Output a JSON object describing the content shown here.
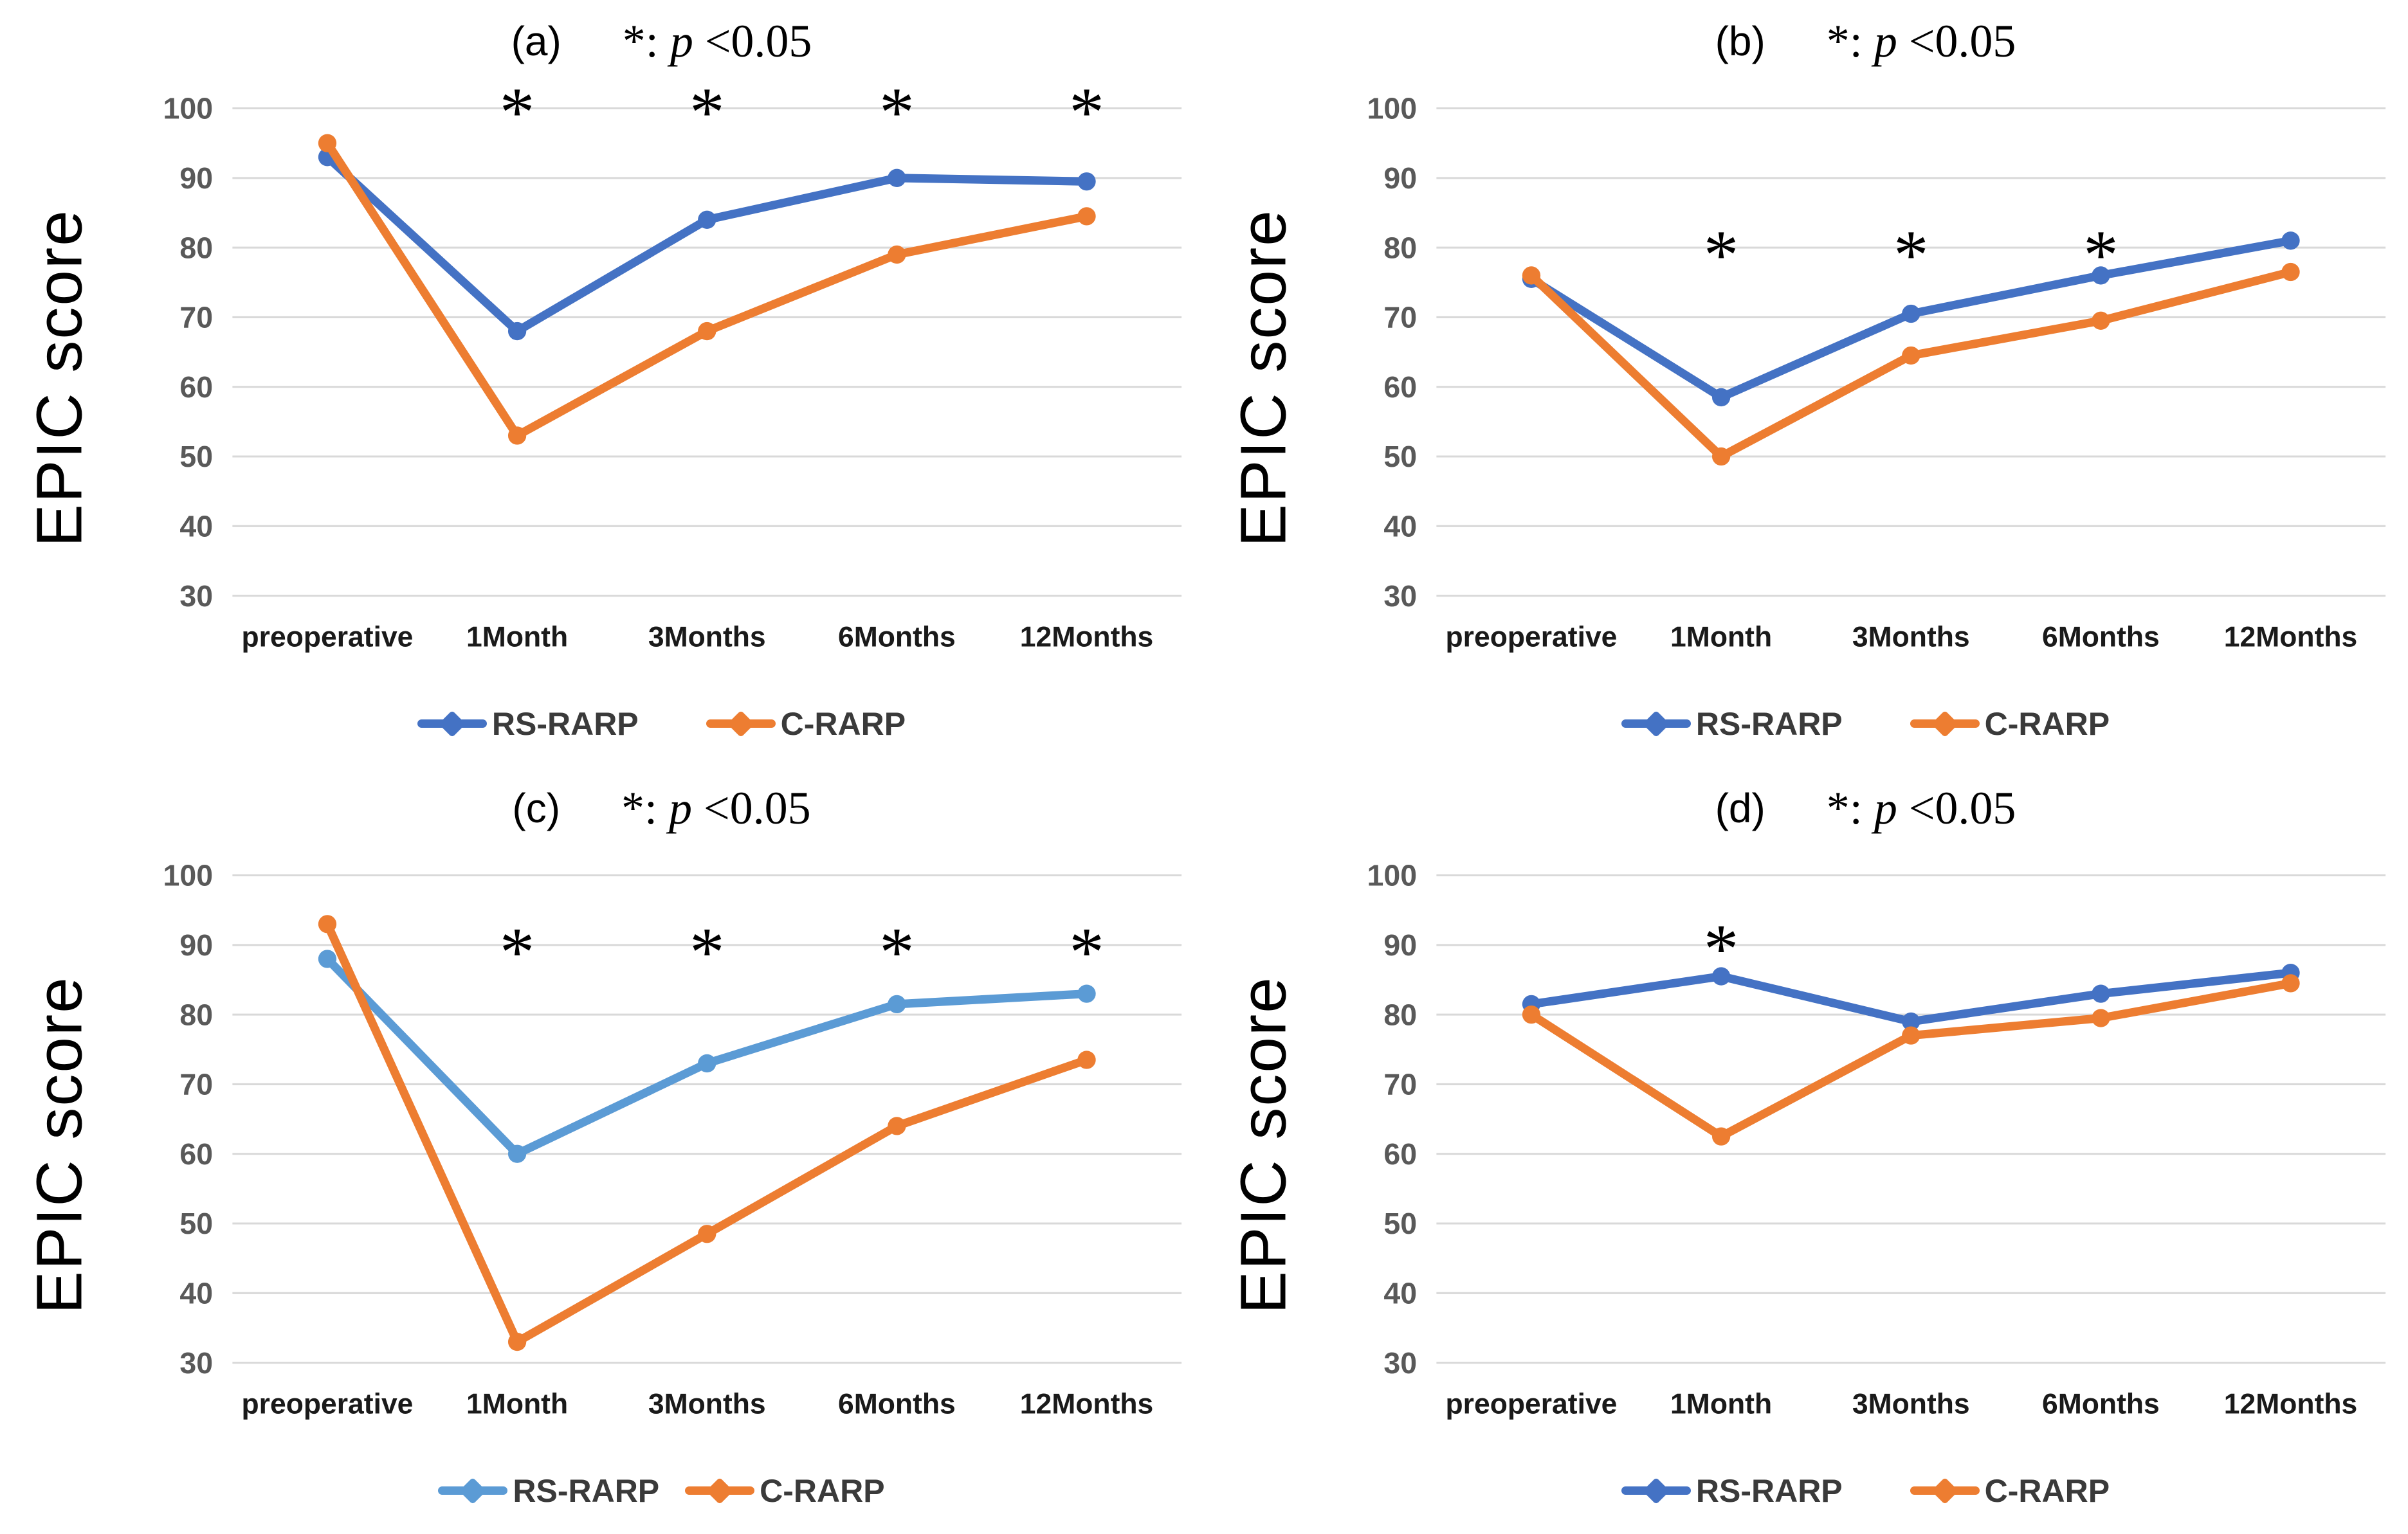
{
  "figure": {
    "ylabel": "EPIC score",
    "colors": {
      "rs_rarp_dark_blue": "#4472C4",
      "rs_rarp_light_blue": "#5B9BD5",
      "c_rarp_orange": "#ED7D31",
      "gridline": "#D9D9D9",
      "y_tick_text": "#595959",
      "x_tick_text": "#1A1A1A"
    }
  },
  "chart_data": [
    {
      "type": "line",
      "panel_label": "(a)",
      "note": {
        "star": "*: ",
        "p": "p",
        "rest": " <0.05"
      },
      "ylabel": "EPIC score",
      "categories": [
        "preoperative",
        "1Month",
        "3Months",
        "6Months",
        "12Months"
      ],
      "ylim": [
        30,
        100
      ],
      "yticks": [
        100,
        90,
        80,
        70,
        60,
        50,
        40,
        30
      ],
      "grid": "horizontal",
      "legend_position": "bottom",
      "series": [
        {
          "name": "RS-RARP",
          "color": "#4472C4",
          "values": [
            93,
            68,
            84,
            90,
            89.5
          ]
        },
        {
          "name": "C-RARP",
          "color": "#ED7D31",
          "values": [
            95,
            53,
            68,
            79,
            84.5
          ]
        }
      ],
      "significance": {
        "symbol": "*",
        "categories": [
          "1Month",
          "3Months",
          "6Months",
          "12Months"
        ],
        "y": 100
      }
    },
    {
      "type": "line",
      "panel_label": "(b)",
      "note": {
        "star": "*: ",
        "p": "p",
        "rest": " <0.05"
      },
      "ylabel": "EPIC score",
      "categories": [
        "preoperative",
        "1Month",
        "3Months",
        "6Months",
        "12Months"
      ],
      "ylim": [
        30,
        100
      ],
      "yticks": [
        100,
        90,
        80,
        70,
        60,
        50,
        40,
        30
      ],
      "grid": "horizontal",
      "legend_position": "bottom",
      "series": [
        {
          "name": "RS-RARP",
          "color": "#4472C4",
          "values": [
            75.5,
            58.5,
            70.5,
            76,
            81
          ]
        },
        {
          "name": "C-RARP",
          "color": "#ED7D31",
          "values": [
            76,
            50,
            64.5,
            69.5,
            76.5
          ]
        }
      ],
      "significance": {
        "symbol": "*",
        "categories": [
          "1Month",
          "3Months",
          "6Months"
        ],
        "y": 79.5
      }
    },
    {
      "type": "line",
      "panel_label": "(c)",
      "note": {
        "star": "*: ",
        "p": "p",
        "rest": " <0.05"
      },
      "ylabel": "EPIC score",
      "categories": [
        "preoperative",
        "1Month",
        "3Months",
        "6Months",
        "12Months"
      ],
      "ylim": [
        30,
        100
      ],
      "yticks": [
        100,
        90,
        80,
        70,
        60,
        50,
        40,
        30
      ],
      "grid": "horizontal",
      "legend_position": "bottom",
      "series": [
        {
          "name": "RS-RARP",
          "color": "#5B9BD5",
          "values": [
            88,
            60,
            73,
            81.5,
            83
          ]
        },
        {
          "name": "C-RARP",
          "color": "#ED7D31",
          "values": [
            93,
            33,
            48.5,
            64,
            73.5
          ]
        }
      ],
      "significance": {
        "symbol": "*",
        "categories": [
          "1Month",
          "3Months",
          "6Months",
          "12Months"
        ],
        "y": 89.5
      }
    },
    {
      "type": "line",
      "panel_label": "(d)",
      "note": {
        "star": "*: ",
        "p": "p",
        "rest": " <0.05"
      },
      "ylabel": "EPIC score",
      "categories": [
        "preoperative",
        "1Month",
        "3Months",
        "6Months",
        "12Months"
      ],
      "ylim": [
        30,
        100
      ],
      "yticks": [
        100,
        90,
        80,
        70,
        60,
        50,
        40,
        30
      ],
      "grid": "horizontal",
      "legend_position": "bottom",
      "series": [
        {
          "name": "RS-RARP",
          "color": "#4472C4",
          "values": [
            81.5,
            85.5,
            79,
            83,
            86
          ]
        },
        {
          "name": "C-RARP",
          "color": "#ED7D31",
          "values": [
            80,
            62.5,
            77,
            79.5,
            84.5
          ]
        }
      ],
      "significance": {
        "symbol": "*",
        "categories": [
          "1Month"
        ],
        "y": 90
      }
    }
  ]
}
